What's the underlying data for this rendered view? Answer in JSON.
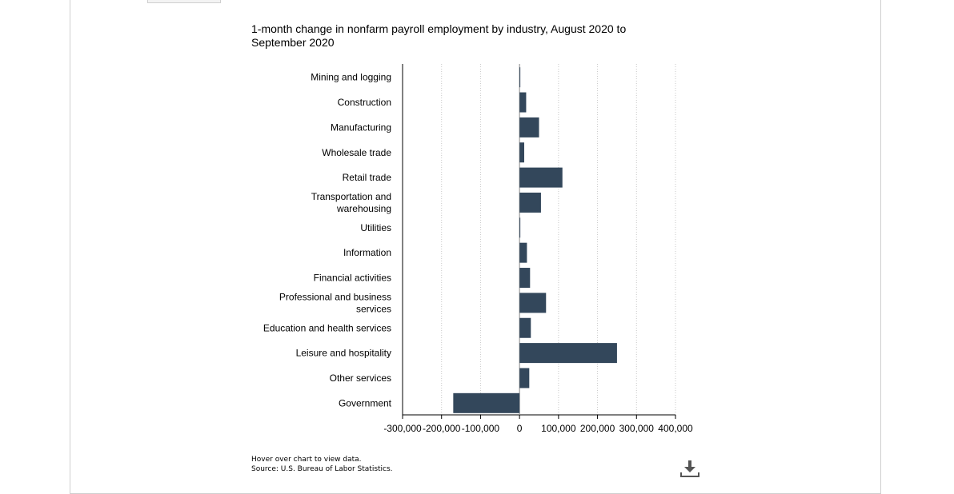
{
  "chart_data": {
    "type": "bar",
    "orientation": "horizontal",
    "title": "1-month change in nonfarm payroll employment by industry, August 2020 to September 2020",
    "categories": [
      "Mining and logging",
      "Construction",
      "Manufacturing",
      "Wholesale trade",
      "Retail trade",
      "Transportation and warehousing",
      "Utilities",
      "Information",
      "Financial activities",
      "Professional and business services",
      "Education and health services",
      "Leisure and hospitality",
      "Other services",
      "Government"
    ],
    "category_lines": [
      [
        "Mining and logging"
      ],
      [
        "Construction"
      ],
      [
        "Manufacturing"
      ],
      [
        "Wholesale trade"
      ],
      [
        "Retail trade"
      ],
      [
        "Transportation and",
        "warehousing"
      ],
      [
        "Utilities"
      ],
      [
        "Information"
      ],
      [
        "Financial activities"
      ],
      [
        "Professional and business",
        "services"
      ],
      [
        "Education and health services"
      ],
      [
        "Leisure and hospitality"
      ],
      [
        "Other services"
      ],
      [
        "Government"
      ]
    ],
    "values": [
      1000,
      17000,
      50000,
      12000,
      110000,
      55000,
      1000,
      19000,
      27000,
      68000,
      29000,
      250000,
      25000,
      -170000
    ],
    "xlim": [
      -300000,
      400000
    ],
    "xticks": [
      -300000,
      -200000,
      -100000,
      0,
      100000,
      200000,
      300000,
      400000
    ],
    "xtick_labels": [
      "-300,000",
      "-200,000",
      "-100,000",
      "0",
      "100,000",
      "200,000",
      "300,000",
      "400,000"
    ],
    "grid": true,
    "bar_color": "#33475b",
    "xlabel": "",
    "ylabel": ""
  },
  "footer": {
    "hover_note": "Hover over chart to view data.",
    "source": "Source: U.S. Bureau of Labor Statistics."
  },
  "icons": {
    "download": "download-icon"
  }
}
